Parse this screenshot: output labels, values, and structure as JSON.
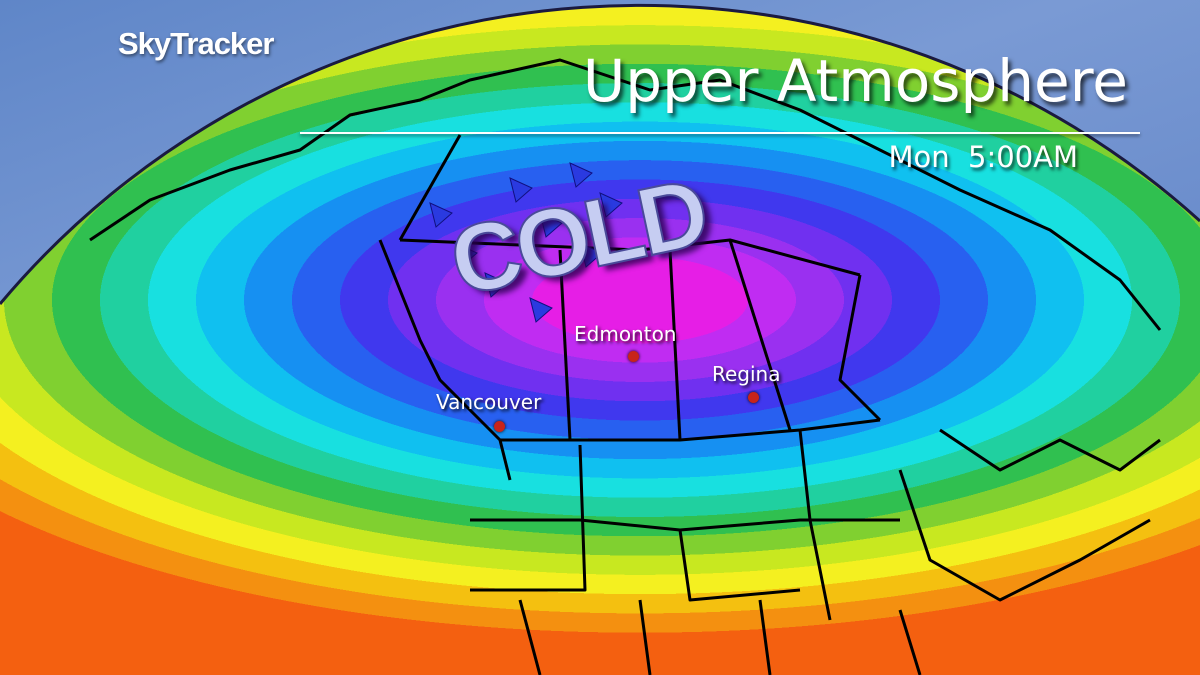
{
  "brand": "SkyTracker",
  "title": "Upper Atmosphere",
  "timestamp": "Mon  5:00AM",
  "annotation": "COLD",
  "cities": [
    {
      "name": "Edmonton"
    },
    {
      "name": "Regina"
    },
    {
      "name": "Vancouver"
    }
  ],
  "colors": {
    "city_marker": "#c8241a",
    "bands_cold_to_warm": [
      "#e61ee6",
      "#c02cf2",
      "#9a30f0",
      "#7030f0",
      "#4038ee",
      "#2860f0",
      "#1690f2",
      "#10c0f0",
      "#18e0e0",
      "#20d0a0",
      "#30c050",
      "#80d030",
      "#c8e820",
      "#f4f020",
      "#f4c010",
      "#f49010",
      "#f46010"
    ]
  },
  "icons": [
    "wind-arrow-icon",
    "city-marker-icon"
  ]
}
